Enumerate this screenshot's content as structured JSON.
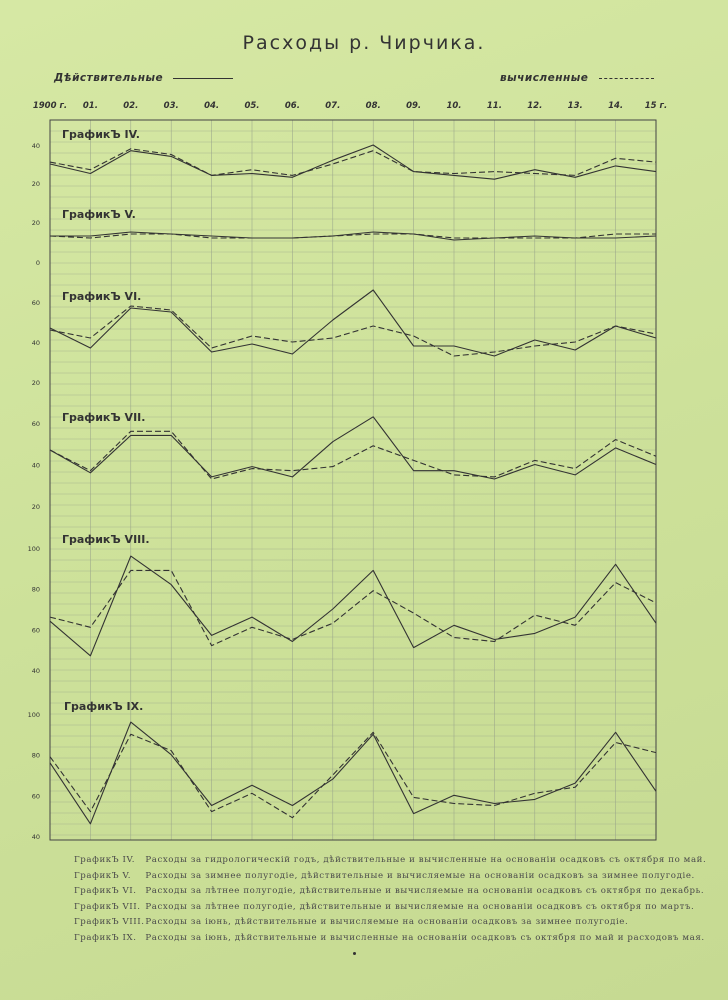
{
  "title": "Расходы р. Чирчика.",
  "legend": {
    "actual_label": "Дѣйствительные",
    "calculated_label": "вычисленные"
  },
  "colors": {
    "line": "#333333",
    "grid": "#9aa58a",
    "paper": "#cfe39a"
  },
  "chart_data": {
    "type": "line",
    "x_tick_labels": [
      "1900 г.",
      "01.",
      "02.",
      "03.",
      "04.",
      "05.",
      "06.",
      "07.",
      "08.",
      "09.",
      "10.",
      "11.",
      "12.",
      "13.",
      "14.",
      "15 г."
    ],
    "x": [
      1900,
      1901,
      1902,
      1903,
      1904,
      1905,
      1906,
      1907,
      1908,
      1909,
      1910,
      1911,
      1912,
      1913,
      1914,
      1915
    ],
    "grid": true,
    "panels": [
      {
        "label": "ГрафикЪ IV.",
        "y_ticks": [
          "40",
          "20"
        ],
        "series": [
          {
            "name": "Дѣйствительные",
            "style": "solid",
            "values": [
              30,
              25,
              37,
              34,
              24,
              25,
              23,
              32,
              40,
              26,
              24,
              22,
              27,
              23,
              29,
              26
            ]
          },
          {
            "name": "вычисленные",
            "style": "dashed",
            "values": [
              31,
              27,
              38,
              35,
              24,
              27,
              24,
              30,
              37,
              26,
              25,
              26,
              25,
              24,
              33,
              31
            ]
          }
        ]
      },
      {
        "label": "ГрафикЪ V.",
        "y_ticks": [
          "20",
          "0"
        ],
        "series": [
          {
            "name": "Дѣйствительные",
            "style": "solid",
            "values": [
              13,
              13,
              15,
              14,
              13,
              12,
              12,
              13,
              15,
              14,
              11,
              12,
              13,
              12,
              12,
              13
            ]
          },
          {
            "name": "вычисленные",
            "style": "dashed",
            "values": [
              13,
              12,
              14,
              14,
              12,
              12,
              12,
              13,
              14,
              14,
              12,
              12,
              12,
              12,
              14,
              14
            ]
          }
        ]
      },
      {
        "label": "ГрафикЪ VI.",
        "y_ticks": [
          "60",
          "40",
          "20"
        ],
        "series": [
          {
            "name": "Дѣйствительные",
            "style": "solid",
            "values": [
              47,
              37,
              57,
              55,
              35,
              39,
              34,
              51,
              66,
              38,
              38,
              33,
              41,
              36,
              48,
              42
            ]
          },
          {
            "name": "вычисленные",
            "style": "dashed",
            "values": [
              46,
              42,
              58,
              56,
              37,
              43,
              40,
              42,
              48,
              43,
              33,
              35,
              38,
              40,
              48,
              44
            ]
          }
        ]
      },
      {
        "label": "ГрафикЪ VII.",
        "y_ticks": [
          "60",
          "40",
          "20"
        ],
        "series": [
          {
            "name": "Дѣйствительные",
            "style": "solid",
            "values": [
              47,
              36,
              54,
              54,
              34,
              39,
              34,
              51,
              63,
              37,
              37,
              33,
              40,
              35,
              48,
              40
            ]
          },
          {
            "name": "вычисленные",
            "style": "dashed",
            "values": [
              47,
              37,
              56,
              56,
              33,
              38,
              37,
              39,
              49,
              42,
              35,
              34,
              42,
              38,
              52,
              44
            ]
          }
        ]
      },
      {
        "label": "ГрафикЪ VIII.",
        "y_ticks": [
          "100",
          "80",
          "60",
          "40"
        ],
        "series": [
          {
            "name": "Дѣйствительные",
            "style": "solid",
            "values": [
              64,
              47,
              96,
              82,
              57,
              66,
              54,
              70,
              89,
              51,
              62,
              55,
              58,
              66,
              92,
              63
            ]
          },
          {
            "name": "вычисленные",
            "style": "dashed",
            "values": [
              66,
              61,
              89,
              89,
              52,
              61,
              55,
              63,
              79,
              68,
              56,
              54,
              67,
              62,
              83,
              73
            ]
          }
        ]
      },
      {
        "label": "ГрафикЪ IX.",
        "y_ticks": [
          "100",
          "80",
          "60",
          "40"
        ],
        "series": [
          {
            "name": "Дѣйствительные",
            "style": "solid",
            "values": [
              76,
              46,
              96,
              80,
              55,
              65,
              55,
              68,
              90,
              51,
              60,
              56,
              58,
              66,
              91,
              62
            ]
          },
          {
            "name": "вычисленные",
            "style": "dashed",
            "values": [
              79,
              52,
              90,
              82,
              52,
              61,
              49,
              70,
              91,
              59,
              56,
              55,
              61,
              64,
              86,
              81
            ]
          }
        ]
      }
    ]
  },
  "captions": [
    {
      "label": "ГрафикЪ IV.",
      "text": "Расходы за гидрологическій годъ, дѣйствительные и вычисленные на основаніи осадковъ съ октября по май."
    },
    {
      "label": "ГрафикЪ V.",
      "text": "Расходы за зимнее полугодіе, дѣйствительные и вычисляемые на основаніи осадковъ за зимнее полугодіе."
    },
    {
      "label": "ГрафикЪ VI.",
      "text": "Расходы за лѣтнее полугодіе, дѣйствительные и вычисляемые на основаніи осадковъ съ октября по декабрь."
    },
    {
      "label": "ГрафикЪ VII.",
      "text": "Расходы за лѣтнее полугодіе, дѣйствительные и вычисляемые на основаніи осадковъ съ октября по мартъ."
    },
    {
      "label": "ГрафикЪ VIII.",
      "text": "Расходы за іюнь, дѣйствительные и вычисляемые на основаніи осадковъ за зимнее полугодіе."
    },
    {
      "label": "ГрафикЪ IX.",
      "text": "Расходы за іюнь, дѣйствительные и вычисленные на основаніи осадковъ съ октября по май и расходовъ мая."
    }
  ]
}
